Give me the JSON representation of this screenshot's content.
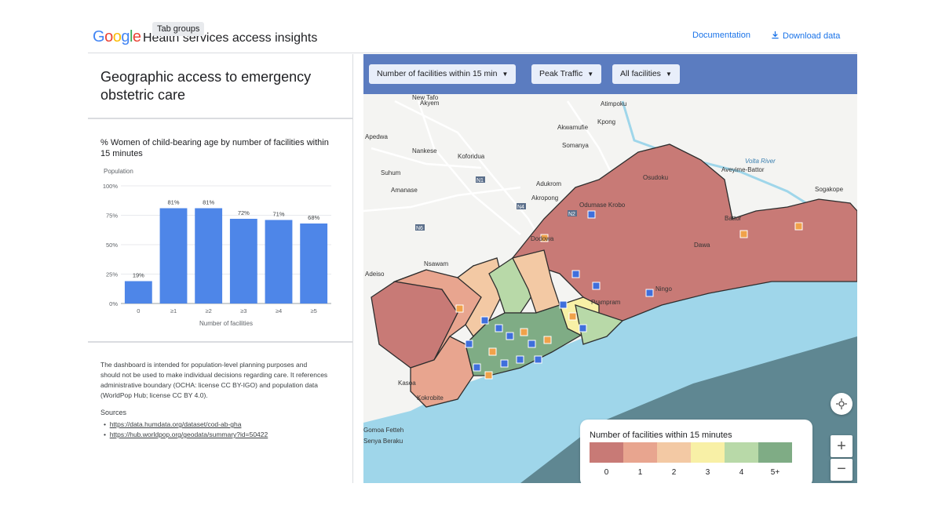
{
  "app": {
    "logo": "Google",
    "title": "Health services access insights",
    "tooltip": "Tab groups",
    "documentation": "Documentation",
    "download": "Download data"
  },
  "panel": {
    "title": "Geographic access to emergency obstetric care",
    "note": "The dashboard is intended for population-level planning purposes and should not be used to make individual decisions regarding care. It references administrative boundary (OCHA: license CC BY-IGO) and population data (WorldPop Hub; license CC BY 4.0).",
    "sources_label": "Sources",
    "sources": [
      "https://data.humdata.org/dataset/cod-ab-gha",
      "https://hub.worldpop.org/geodata/summary?id=50422"
    ]
  },
  "chart_data": {
    "type": "bar",
    "title": "% Women of child-bearing age by number of facilities within 15 minutes",
    "ylabel": "Population",
    "xlabel": "Number of facilities",
    "categories": [
      "0",
      "≥1",
      "≥2",
      "≥3",
      "≥4",
      "≥5"
    ],
    "values": [
      19,
      81,
      81,
      72,
      71,
      68
    ],
    "value_labels": [
      "19%",
      "81%",
      "81%",
      "72%",
      "71%",
      "68%"
    ],
    "ylim": [
      0,
      100
    ],
    "yticks": [
      "0%",
      "25%",
      "50%",
      "75%",
      "100%"
    ],
    "grid": true,
    "color": "#4e86e8"
  },
  "map": {
    "filters": [
      {
        "label": "Number of facilities within 15 min"
      },
      {
        "label": "Peak Traffic"
      },
      {
        "label": "All facilities"
      }
    ],
    "places": [
      "New Tafo",
      "Akyem",
      "Atimpoku",
      "Kpong",
      "Akwamufie",
      "Apedwa",
      "Somanya",
      "Nankese",
      "Koforidua",
      "Suhum",
      "Adukrom",
      "Amanase",
      "Akropong",
      "Odumase Krobo",
      "Osudoku",
      "Aveyime-Battor",
      "Sogakope",
      "Battor",
      "Nsawam",
      "Adeiso",
      "Dodowa",
      "Dawa",
      "Prampram",
      "Ningo",
      "Kasoa",
      "Kokrobite",
      "Gomoa Fetteh",
      "Senya Beraku",
      "Volta River",
      "N1",
      "N4",
      "N6",
      "N2"
    ],
    "legend": {
      "title": "Number of facilities within 15 minutes",
      "labels": [
        "0",
        "1",
        "2",
        "3",
        "4",
        "5+"
      ],
      "colors": [
        "#c87a76",
        "#e8a58f",
        "#f3c9a4",
        "#f8f0a6",
        "#b8d9a8",
        "#7fac85"
      ]
    },
    "zoom_in": "+",
    "zoom_out": "−"
  }
}
